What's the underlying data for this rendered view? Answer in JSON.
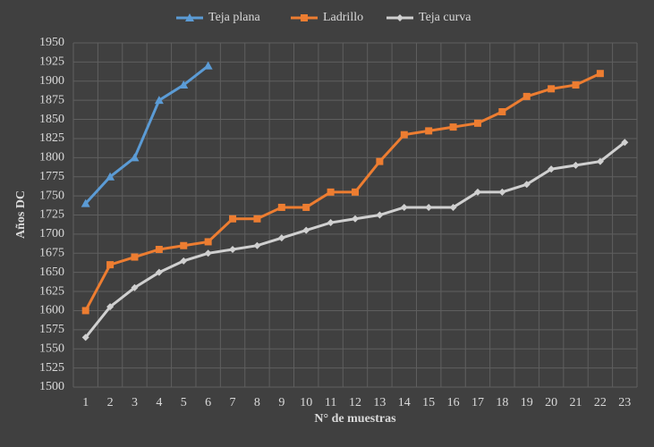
{
  "chart_data": {
    "type": "line",
    "xlabel": "N° de muestras",
    "ylabel": "Años DC",
    "categories": [
      "1",
      "2",
      "3",
      "4",
      "5",
      "6",
      "7",
      "8",
      "9",
      "10",
      "11",
      "12",
      "13",
      "14",
      "15",
      "16",
      "17",
      "18",
      "19",
      "20",
      "21",
      "22",
      "23"
    ],
    "series": [
      {
        "name": "Teja plana",
        "color": "#5b9bd5",
        "marker": "triangle",
        "values": [
          1740,
          1775,
          1800,
          1875,
          1895,
          1920,
          null,
          null,
          null,
          null,
          null,
          null,
          null,
          null,
          null,
          null,
          null,
          null,
          null,
          null,
          null,
          null,
          null
        ]
      },
      {
        "name": "Ladrillo",
        "color": "#ed7d31",
        "marker": "square",
        "values": [
          1600,
          1660,
          1670,
          1680,
          1685,
          1690,
          1720,
          1720,
          1735,
          1735,
          1755,
          1755,
          1795,
          1830,
          1835,
          1840,
          1845,
          1860,
          1880,
          1890,
          1895,
          1910,
          null
        ]
      },
      {
        "name": "Teja curva",
        "color": "#d0d0d0",
        "marker": "diamond",
        "values": [
          1565,
          1605,
          1630,
          1650,
          1665,
          1675,
          1680,
          1685,
          1695,
          1705,
          1715,
          1720,
          1725,
          1735,
          1735,
          1735,
          1755,
          1755,
          1765,
          1785,
          1790,
          1795,
          1820
        ]
      }
    ],
    "ylim": [
      1500,
      1950
    ],
    "yticks": [
      1500,
      1525,
      1550,
      1575,
      1600,
      1625,
      1650,
      1675,
      1700,
      1725,
      1750,
      1775,
      1800,
      1825,
      1850,
      1875,
      1900,
      1925,
      1950
    ],
    "grid": true,
    "legend": "top"
  }
}
